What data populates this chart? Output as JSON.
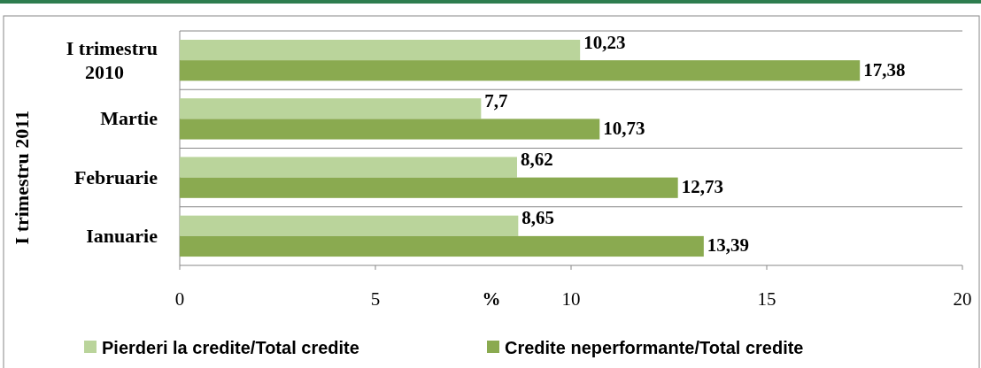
{
  "chart_data": {
    "type": "bar",
    "orientation": "horizontal",
    "categories": [
      "I trimestru 2010",
      "Martie",
      "Februarie",
      "Ianuarie"
    ],
    "series": [
      {
        "name": "Pierderi la credite/Total credite",
        "color": "#bad49b",
        "values": [
          10.23,
          7.7,
          8.62,
          8.65
        ],
        "value_labels": [
          "10,23",
          "7,7",
          "8,62",
          "8,65"
        ]
      },
      {
        "name": "Credite neperformante/Total credite",
        "color": "#8aaa50",
        "values": [
          17.38,
          10.73,
          12.73,
          13.39
        ],
        "value_labels": [
          "17,38",
          "10,73",
          "12,73",
          "13,39"
        ]
      }
    ],
    "xlim": [
      0,
      20
    ],
    "xticks": [
      0,
      5,
      10,
      15,
      20
    ],
    "xlabel": "%",
    "ylabel": "I trimestru 2011",
    "grid": "y",
    "legend": "bottom"
  }
}
